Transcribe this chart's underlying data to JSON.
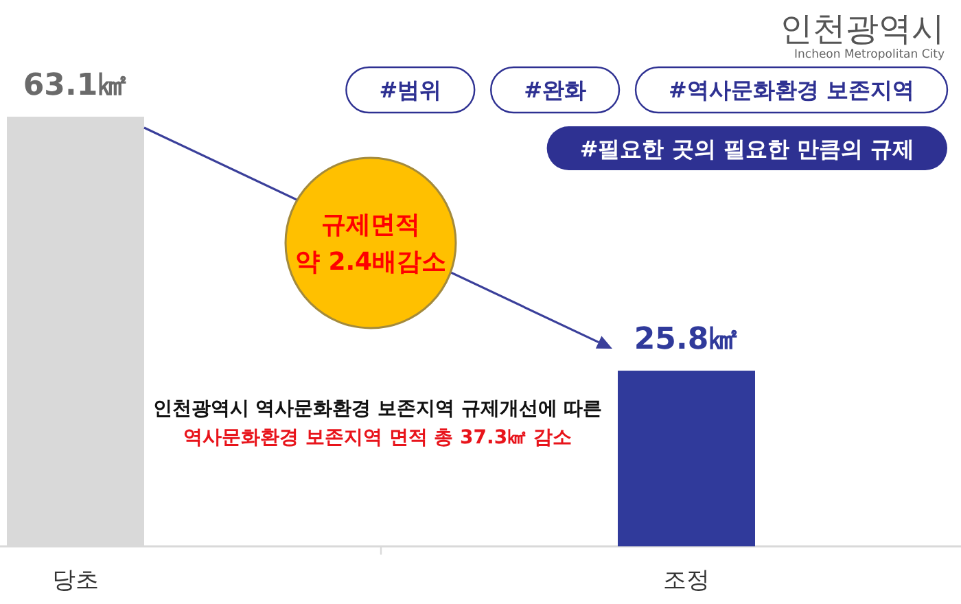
{
  "chart_data": {
    "type": "bar",
    "categories": [
      "당초",
      "조정"
    ],
    "values": [
      63.1,
      25.8
    ],
    "colors": [
      "#d9d9d9",
      "#303a9b"
    ],
    "value_labels": [
      "63.1㎢",
      "25.8㎢"
    ],
    "annotations": [
      "#범위",
      "#완화",
      "#역사문화환경 보존지역",
      "#필요한 곳의 필요한 만큼의 규제",
      "규제면적\n약 2.4배감소",
      "인천광역시 역사문화환경 보존지역 규제개선에 따른",
      "역사문화환경 보존지역 면적 총 37.3㎢ 감소",
      "인천광역시",
      "Incheon Metropolitan City"
    ]
  }
}
